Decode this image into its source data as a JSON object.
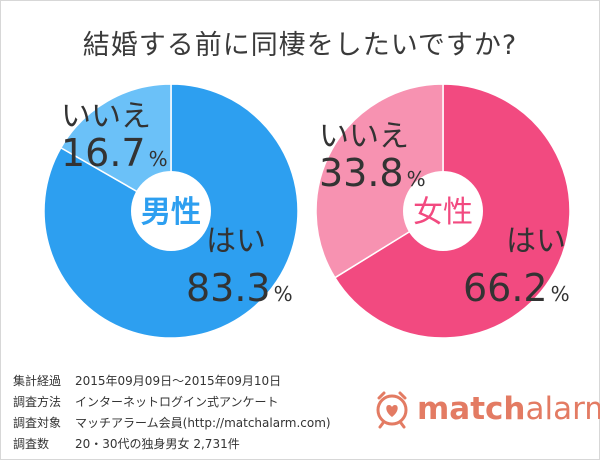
{
  "title": "結婚する前に同棲をしたいですか?",
  "chart_data": [
    {
      "type": "pie",
      "title": "男性",
      "slices": [
        {
          "label": "はい",
          "value": 83.3,
          "display": "83.3",
          "color": "#2d9ff0"
        },
        {
          "label": "いいえ",
          "value": 16.7,
          "display": "16.7",
          "color": "#6bc1f8"
        }
      ],
      "unit": "%"
    },
    {
      "type": "pie",
      "title": "女性",
      "slices": [
        {
          "label": "はい",
          "value": 66.2,
          "display": "66.2",
          "color": "#f24a80"
        },
        {
          "label": "いいえ",
          "value": 33.8,
          "display": "33.8",
          "color": "#f792b1"
        }
      ],
      "unit": "%"
    }
  ],
  "footer": [
    {
      "key": "集計経過",
      "value": "2015年09月09日〜2015年09月10日"
    },
    {
      "key": "調査方法",
      "value": "インターネットログイン式アンケート"
    },
    {
      "key": "調査対象",
      "value": "マッチアラーム会員(http://matchalarm.com)"
    },
    {
      "key": "調査数",
      "value": "20・30代の独身男女 2,731件"
    }
  ],
  "brand": {
    "part1": "match",
    "part2": "alarm",
    "icon": "alarm-clock-heart-icon",
    "color": "#e37b63"
  }
}
